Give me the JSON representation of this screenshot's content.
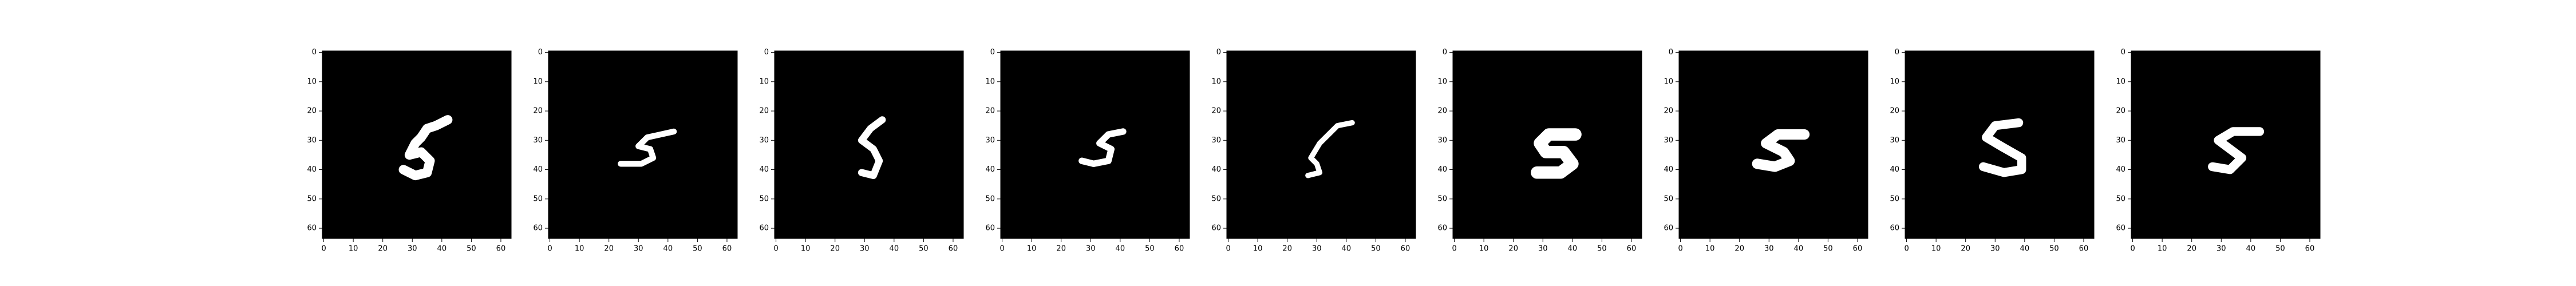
{
  "chart_data": [
    {
      "type": "image",
      "xlim": [
        -0.5,
        63.5
      ],
      "ylim": [
        63.5,
        -0.5
      ],
      "xticks": [
        0,
        10,
        20,
        30,
        40,
        50,
        60
      ],
      "yticks": [
        0,
        10,
        20,
        30,
        40,
        50,
        60
      ]
    },
    {
      "type": "image",
      "xlim": [
        -0.5,
        63.5
      ],
      "ylim": [
        63.5,
        -0.5
      ],
      "xticks": [
        0,
        10,
        20,
        30,
        40,
        50,
        60
      ],
      "yticks": [
        0,
        10,
        20,
        30,
        40,
        50,
        60
      ]
    },
    {
      "type": "image",
      "xlim": [
        -0.5,
        63.5
      ],
      "ylim": [
        63.5,
        -0.5
      ],
      "xticks": [
        0,
        10,
        20,
        30,
        40,
        50,
        60
      ],
      "yticks": [
        0,
        10,
        20,
        30,
        40,
        50,
        60
      ]
    },
    {
      "type": "image",
      "xlim": [
        -0.5,
        63.5
      ],
      "ylim": [
        63.5,
        -0.5
      ],
      "xticks": [
        0,
        10,
        20,
        30,
        40,
        50,
        60
      ],
      "yticks": [
        0,
        10,
        20,
        30,
        40,
        50,
        60
      ]
    },
    {
      "type": "image",
      "xlim": [
        -0.5,
        63.5
      ],
      "ylim": [
        63.5,
        -0.5
      ],
      "xticks": [
        0,
        10,
        20,
        30,
        40,
        50,
        60
      ],
      "yticks": [
        0,
        10,
        20,
        30,
        40,
        50,
        60
      ]
    },
    {
      "type": "image",
      "xlim": [
        -0.5,
        63.5
      ],
      "ylim": [
        63.5,
        -0.5
      ],
      "xticks": [
        0,
        10,
        20,
        30,
        40,
        50,
        60
      ],
      "yticks": [
        0,
        10,
        20,
        30,
        40,
        50,
        60
      ]
    },
    {
      "type": "image",
      "xlim": [
        -0.5,
        63.5
      ],
      "ylim": [
        63.5,
        -0.5
      ],
      "xticks": [
        0,
        10,
        20,
        30,
        40,
        50,
        60
      ],
      "yticks": [
        0,
        10,
        20,
        30,
        40,
        50,
        60
      ]
    },
    {
      "type": "image",
      "xlim": [
        -0.5,
        63.5
      ],
      "ylim": [
        63.5,
        -0.5
      ],
      "xticks": [
        0,
        10,
        20,
        30,
        40,
        50,
        60
      ],
      "yticks": [
        0,
        10,
        20,
        30,
        40,
        50,
        60
      ]
    },
    {
      "type": "image",
      "xlim": [
        -0.5,
        63.5
      ],
      "ylim": [
        63.5,
        -0.5
      ],
      "xticks": [
        0,
        10,
        20,
        30,
        40,
        50,
        60
      ],
      "yticks": [
        0,
        10,
        20,
        30,
        40,
        50,
        60
      ]
    }
  ]
}
